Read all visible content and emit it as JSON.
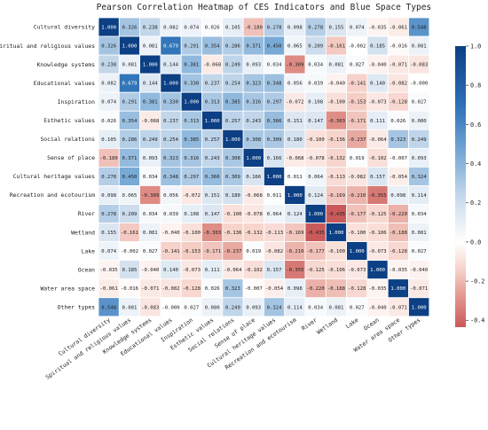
{
  "chart_data": {
    "type": "heatmap",
    "title": "Pearson Correlation Heatmap of CES Indicators and Blue Space Types",
    "row_labels": [
      "Cultural diversity",
      "Spiritual and religious values",
      "Knowledge systems",
      "Educational values",
      "Inspiration",
      "Esthetic values",
      "Social relations",
      "Sense of place",
      "Cultural heritage values",
      "Recreation and ecotourism",
      "River",
      "Wetland",
      "Lake",
      "Ocean",
      "Water area space",
      "Other types"
    ],
    "col_labels": [
      "Cultural diversity",
      "Spiritual and religious values",
      "Knowledge systems",
      "Educational values",
      "Inspiration",
      "Esthetic values",
      "Social relations",
      "Sense of place",
      "Cultural heritage values",
      "Recreation and ecotourism",
      "River",
      "Wetland",
      "Lake",
      "Ocean",
      "Water area space",
      "Other types"
    ],
    "values": [
      [
        1.0,
        0.326,
        0.238,
        0.082,
        0.074,
        0.026,
        0.105,
        -0.18,
        0.278,
        0.098,
        0.278,
        0.155,
        0.074,
        -0.035,
        -0.061,
        0.548
      ],
      [
        0.326,
        1.0,
        0.081,
        0.679,
        0.291,
        0.354,
        0.286,
        0.371,
        0.45,
        0.065,
        0.209,
        -0.161,
        -0.002,
        0.185,
        -0.016,
        0.081
      ],
      [
        0.238,
        0.081,
        1.0,
        0.144,
        0.381,
        -0.068,
        0.249,
        0.093,
        0.034,
        -0.309,
        0.034,
        0.081,
        0.027,
        -0.04,
        -0.071,
        -0.083
      ],
      [
        0.082,
        0.679,
        0.144,
        1.0,
        0.33,
        0.237,
        0.254,
        0.323,
        0.348,
        0.056,
        0.039,
        -0.04,
        -0.141,
        0.14,
        -0.082,
        -0.0
      ],
      [
        0.074,
        0.291,
        0.381,
        0.33,
        1.0,
        0.313,
        0.385,
        0.316,
        0.297,
        -0.072,
        0.108,
        -0.1,
        -0.153,
        -0.073,
        -0.128,
        0.027
      ],
      [
        0.026,
        0.354,
        -0.068,
        0.237,
        0.313,
        1.0,
        0.257,
        0.243,
        0.366,
        0.151,
        0.147,
        -0.303,
        -0.171,
        0.111,
        0.026,
        0.08
      ],
      [
        0.105,
        0.286,
        0.249,
        0.254,
        0.385,
        0.257,
        1.0,
        0.308,
        0.309,
        0.18,
        -0.1,
        -0.136,
        -0.237,
        -0.064,
        0.323,
        0.249
      ],
      [
        -0.18,
        0.371,
        0.093,
        0.323,
        0.316,
        0.243,
        0.308,
        1.0,
        0.166,
        -0.068,
        -0.078,
        -0.132,
        0.019,
        -0.102,
        -0.007,
        0.093
      ],
      [
        0.278,
        0.45,
        0.034,
        0.348,
        0.297,
        0.366,
        0.309,
        0.166,
        1.0,
        0.011,
        0.064,
        -0.113,
        -0.082,
        0.157,
        -0.054,
        0.324
      ],
      [
        0.098,
        0.065,
        -0.309,
        0.056,
        -0.072,
        0.151,
        0.18,
        -0.068,
        0.011,
        1.0,
        0.124,
        -0.169,
        -0.21,
        -0.355,
        0.098,
        0.114
      ],
      [
        0.278,
        0.209,
        0.034,
        0.039,
        0.108,
        0.147,
        -0.1,
        -0.078,
        0.064,
        0.124,
        1.0,
        -0.435,
        -0.177,
        -0.125,
        -0.22,
        0.034
      ],
      [
        0.155,
        -0.161,
        0.081,
        -0.04,
        -0.1,
        -0.303,
        -0.136,
        -0.132,
        -0.113,
        -0.169,
        -0.435,
        1.0,
        -0.1,
        -0.106,
        -0.188,
        0.081
      ],
      [
        0.074,
        -0.002,
        0.027,
        -0.141,
        -0.153,
        -0.171,
        -0.237,
        0.019,
        -0.082,
        -0.21,
        -0.177,
        -0.1,
        1.0,
        -0.073,
        -0.128,
        0.027
      ],
      [
        -0.035,
        0.185,
        -0.04,
        0.14,
        -0.073,
        0.111,
        -0.064,
        -0.102,
        0.157,
        -0.355,
        -0.125,
        -0.106,
        -0.073,
        1.0,
        -0.035,
        -0.04
      ],
      [
        -0.061,
        -0.016,
        -0.071,
        -0.082,
        -0.128,
        0.026,
        0.323,
        -0.007,
        -0.054,
        0.098,
        -0.22,
        -0.188,
        -0.128,
        -0.035,
        1.0,
        -0.071
      ],
      [
        0.548,
        0.081,
        -0.083,
        -0.0,
        0.027,
        0.08,
        0.249,
        0.093,
        0.324,
        0.114,
        0.034,
        0.081,
        0.027,
        -0.04,
        -0.071,
        1.0
      ]
    ],
    "colorbar": {
      "ticks": [
        "1.0",
        "0.8",
        "0.6",
        "0.4",
        "0.2",
        "0.0",
        "-0.2",
        "-0.4"
      ],
      "min": -0.435,
      "max": 1.0
    },
    "colors": {
      "negative": "#c9595a",
      "zero": "#ffffff",
      "positive": "#0c3f84"
    }
  }
}
